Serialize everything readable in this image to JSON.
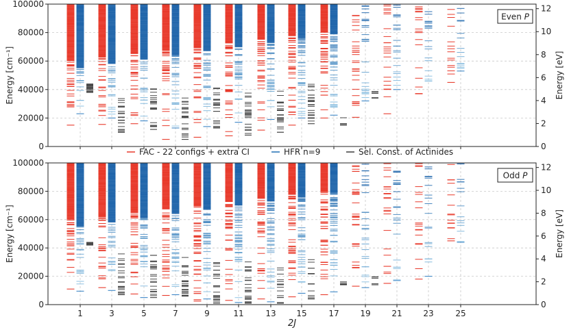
{
  "chart_data": {
    "type": "scatter",
    "style": "horizontal line markers (energy levels) grouped by 2J",
    "xlabel": "2J",
    "x_ticks": [
      "1",
      "3",
      "5",
      "7",
      "9",
      "11",
      "13",
      "15",
      "17",
      "19",
      "21",
      "23",
      "25"
    ],
    "ylabel_left": "Energy [cm⁻¹]",
    "ylabel_right": "Energy [eV]",
    "ylim": [
      0,
      100000
    ],
    "y_ticks": [
      "0",
      "20000",
      "40000",
      "60000",
      "80000",
      "100000"
    ],
    "ev_ticks": [
      "0",
      "2",
      "4",
      "6",
      "8",
      "10",
      "12"
    ],
    "ev_per_cm": 0.000123984,
    "legend": [
      {
        "label": "FAC - 22 configs + extra CI",
        "color": "#e8392a"
      },
      {
        "label": "HFR n=9",
        "color": "#1f6fb4"
      },
      {
        "label": "Sel. Const. of Actinides",
        "color": "#3a3a3a"
      }
    ],
    "panels": [
      {
        "label": "Even P",
        "series": [
          {
            "name": "FAC - 22 configs + extra CI",
            "lowest_level_cm": [
              15000,
              15500,
              16000,
              5000,
              6500,
              7500,
              11500,
              15000,
              20000,
              20500,
              23000,
              37000,
              45000
            ]
          },
          {
            "name": "HFR n=9",
            "lowest_level_cm": [
              23000,
              20000,
              18000,
              13000,
              14000,
              17000,
              19000,
              20000,
              22000,
              32000,
              40000,
              46000,
              53000
            ]
          },
          {
            "name": "Sel. Const. of Actinides",
            "lowest_level_cm": [
              38000,
              10000,
              12000,
              5000,
              13000,
              8000,
              10000,
              16000,
              15000,
              34000
            ]
          }
        ]
      },
      {
        "label": "Odd P",
        "series": [
          {
            "name": "FAC - 22 configs + extra CI",
            "lowest_level_cm": [
              11000,
              12000,
              7500,
              6500,
              2500,
              3000,
              4000,
              5500,
              7000,
              13000,
              15000,
              18000,
              45000
            ]
          },
          {
            "name": "HFR n=9",
            "lowest_level_cm": [
              9500,
              10000,
              5000,
              7000,
              4000,
              1500,
              2000,
              8000,
              9000,
              12000,
              17000,
              20000,
              44000
            ]
          },
          {
            "name": "Sel. Const. of Actinides",
            "lowest_level_cm": [
              42000,
              7000,
              5000,
              6000,
              1000,
              1000,
              1000,
              4000,
              14000,
              14000
            ]
          }
        ]
      }
    ]
  }
}
